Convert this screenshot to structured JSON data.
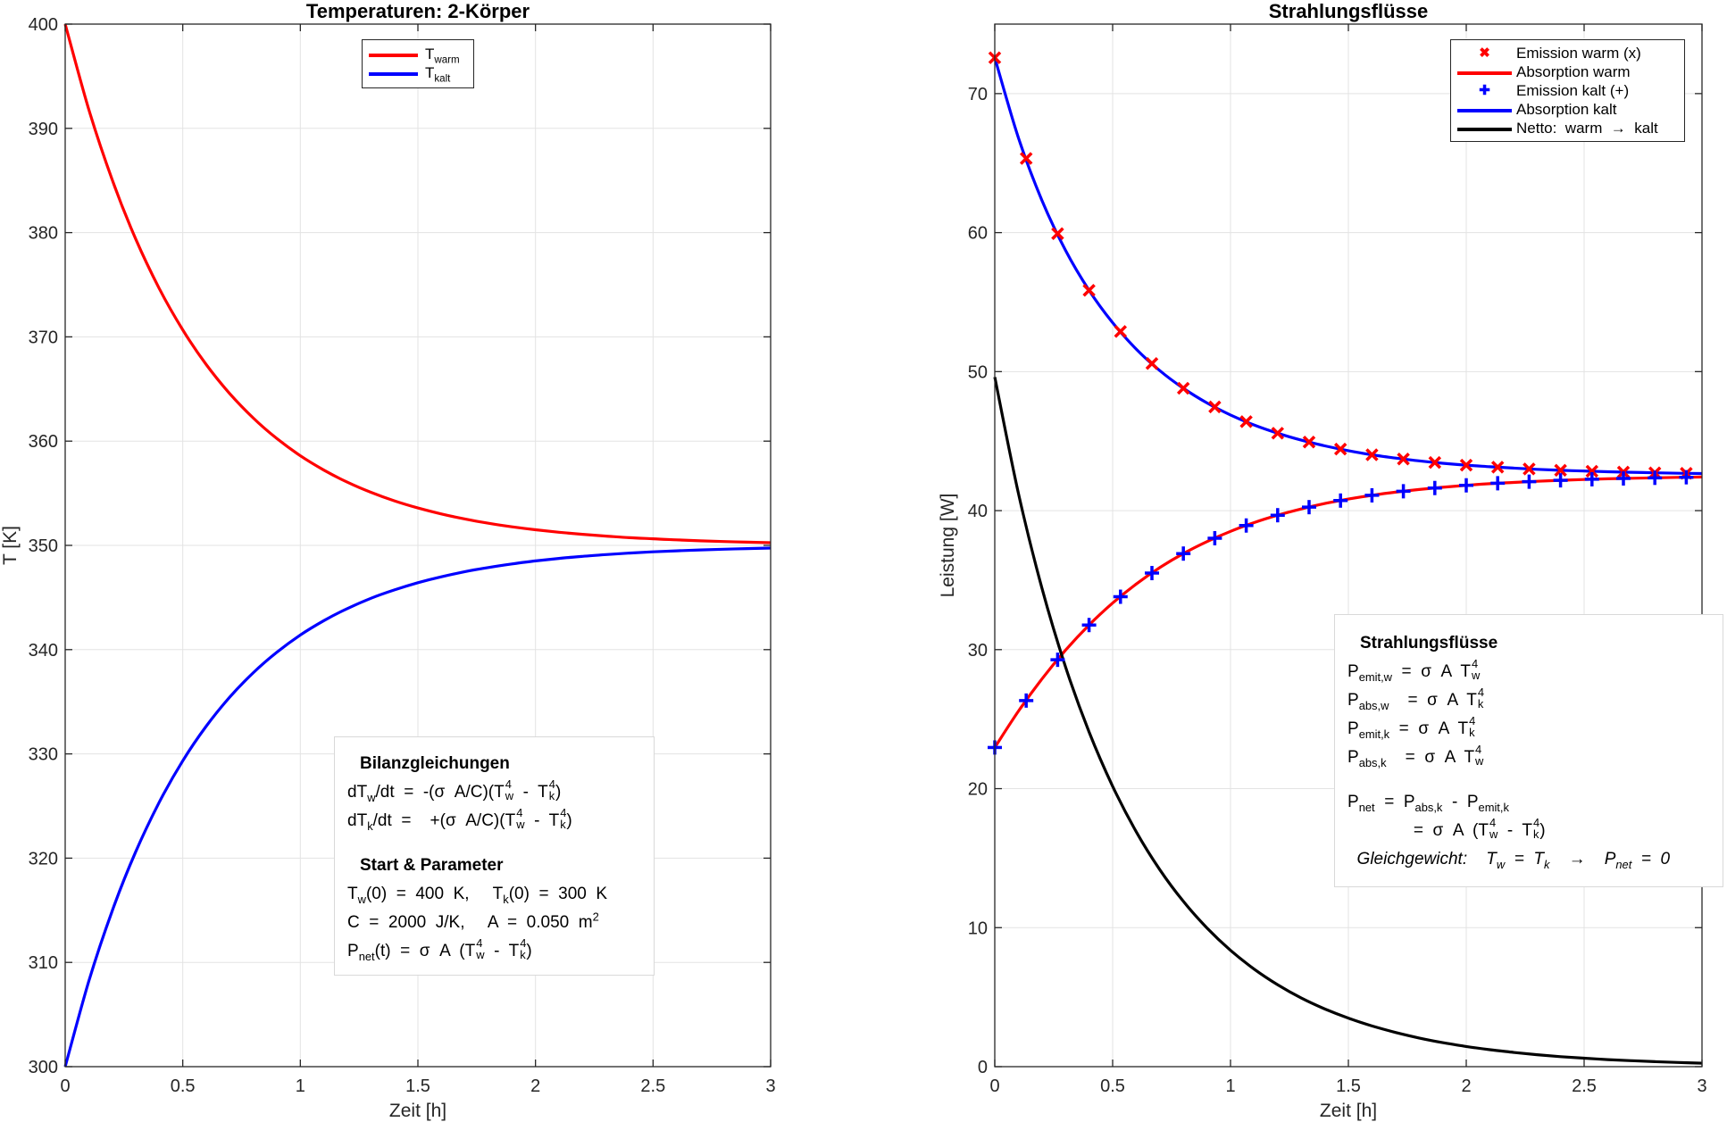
{
  "chart_data": [
    {
      "type": "line",
      "title": "Temperaturen: 2-Körper",
      "xlabel": "Zeit [h]",
      "ylabel": "T [K]",
      "xlim": [
        0,
        3
      ],
      "ylim": [
        300,
        400
      ],
      "xticks": [
        0,
        0.5,
        1,
        1.5,
        2,
        2.5,
        3
      ],
      "xtick_labels": [
        "0",
        "0.5",
        "1",
        "1.5",
        "2",
        "2.5",
        "3"
      ],
      "yticks": [
        300,
        310,
        320,
        330,
        340,
        350,
        360,
        370,
        380,
        390,
        400
      ],
      "ytick_labels": [
        "300",
        "310",
        "320",
        "330",
        "340",
        "350",
        "360",
        "370",
        "380",
        "390",
        "400"
      ],
      "grid": true,
      "legend_placement": "top-center",
      "x": [
        0,
        0.1,
        0.2,
        0.3,
        0.4,
        0.5,
        0.6,
        0.7,
        0.8,
        0.9,
        1.0,
        1.1,
        1.2,
        1.3,
        1.4,
        1.5,
        1.6,
        1.7,
        1.8,
        1.9,
        2.0,
        2.1,
        2.2,
        2.3,
        2.4,
        2.5,
        2.6,
        2.7,
        2.8,
        2.9,
        3.0
      ],
      "series": [
        {
          "name": "T warm",
          "legend": [
            {
              "t": "T"
            },
            {
              "sub": "warm"
            }
          ],
          "color": "#ff0000",
          "style": "line",
          "values": [
            400,
            391.85,
            385.06,
            379.38,
            374.64,
            370.67,
            367.34,
            364.55,
            362.21,
            360.25,
            358.6,
            357.22,
            356.06,
            355.09,
            354.27,
            353.59,
            353.01,
            352.53,
            352.12,
            351.78,
            351.5,
            351.26,
            351.06,
            350.89,
            350.74,
            350.63,
            350.53,
            350.44,
            350.37,
            350.31,
            350.26
          ]
        },
        {
          "name": "T kalt",
          "legend": [
            {
              "t": "T"
            },
            {
              "sub": "kalt"
            }
          ],
          "color": "#0000ff",
          "style": "line",
          "values": [
            300,
            308.16,
            314.95,
            320.62,
            325.36,
            329.34,
            332.66,
            335.45,
            337.79,
            339.75,
            341.4,
            342.78,
            343.94,
            344.92,
            345.73,
            346.42,
            346.99,
            347.48,
            347.88,
            348.22,
            348.51,
            348.75,
            348.95,
            349.12,
            349.26,
            349.38,
            349.48,
            349.56,
            349.63,
            349.69,
            349.74
          ]
        }
      ],
      "annotation": [
        {
          "head": "Bilanzgleichungen"
        },
        {
          "seg": [
            {
              "t": "dT"
            },
            {
              "sub": "w"
            },
            {
              "t": "/dt  =  -(σ  A/C)(T"
            },
            {
              "ss": [
                "4",
                "w"
              ]
            },
            {
              "t": "  -  T"
            },
            {
              "ss": [
                "4",
                "k"
              ]
            },
            {
              "t": ")"
            }
          ]
        },
        {
          "seg": [
            {
              "t": "dT"
            },
            {
              "sub": "k"
            },
            {
              "t": "/dt  =    +(σ  A/C)(T"
            },
            {
              "ss": [
                "4",
                "w"
              ]
            },
            {
              "t": "  -  T"
            },
            {
              "ss": [
                "4",
                "k"
              ]
            },
            {
              "t": ")"
            }
          ]
        },
        {
          "blank": true
        },
        {
          "head": "Start  &  Parameter"
        },
        {
          "seg": [
            {
              "t": "T"
            },
            {
              "sub": "w"
            },
            {
              "t": "(0)  =  400  K,     T"
            },
            {
              "sub": "k"
            },
            {
              "t": "(0)  =  300  K"
            }
          ]
        },
        {
          "seg": [
            {
              "t": "C  =  2000  J/K,     A  =  0.050  m"
            },
            {
              "sup": "2"
            }
          ]
        },
        {
          "seg": [
            {
              "t": "P"
            },
            {
              "sub": "net"
            },
            {
              "t": "(t)  =  σ  A  (T"
            },
            {
              "ss": [
                "4",
                "w"
              ]
            },
            {
              "t": "  -  T"
            },
            {
              "ss": [
                "4",
                "k"
              ]
            },
            {
              "t": ")"
            }
          ]
        }
      ]
    },
    {
      "type": "line",
      "title": "Strahlungsflüsse",
      "xlabel": "Zeit [h]",
      "ylabel": "Leistung [W]",
      "xlim": [
        0,
        3
      ],
      "ylim": [
        0,
        75
      ],
      "xticks": [
        0,
        0.5,
        1,
        1.5,
        2,
        2.5,
        3
      ],
      "xtick_labels": [
        "0",
        "0.5",
        "1",
        "1.5",
        "2",
        "2.5",
        "3"
      ],
      "yticks": [
        0,
        10,
        20,
        30,
        40,
        50,
        60,
        70
      ],
      "ytick_labels": [
        "0",
        "10",
        "20",
        "30",
        "40",
        "50",
        "60",
        "70"
      ],
      "grid": true,
      "legend_placement": "top-right",
      "x": [
        0,
        0.1,
        0.2,
        0.3,
        0.4,
        0.5,
        0.6,
        0.7,
        0.8,
        0.9,
        1.0,
        1.1,
        1.2,
        1.3,
        1.4,
        1.5,
        1.6,
        1.7,
        1.8,
        1.9,
        2.0,
        2.1,
        2.2,
        2.3,
        2.4,
        2.5,
        2.6,
        2.7,
        2.8,
        2.9,
        3.0
      ],
      "marker_t": [
        0,
        0.1333,
        0.2667,
        0.4,
        0.5333,
        0.6667,
        0.8,
        0.9333,
        1.0667,
        1.2,
        1.3333,
        1.4667,
        1.6,
        1.7333,
        1.8667,
        2.0,
        2.1333,
        2.2667,
        2.4,
        2.5333,
        2.6667,
        2.8,
        2.9333
      ],
      "series": [
        {
          "name": "Emission warm (x)",
          "color": "#ff0000",
          "style": "marker-x",
          "values": [
            72.58,
            66.84,
            62.32,
            58.73,
            55.85,
            53.52,
            51.62,
            50.07,
            48.8,
            47.75,
            46.88,
            46.16,
            45.57,
            45.07,
            44.66,
            44.31,
            44.02,
            43.78,
            43.58,
            43.41,
            43.27,
            43.16,
            43.06,
            42.97,
            42.9,
            42.85,
            42.8,
            42.76,
            42.72,
            42.69,
            42.67
          ]
        },
        {
          "name": "Absorption warm",
          "color": "#ff0000",
          "style": "line",
          "values": [
            22.96,
            25.56,
            27.89,
            29.96,
            31.77,
            33.35,
            34.72,
            35.9,
            36.91,
            37.77,
            38.51,
            39.14,
            39.67,
            40.12,
            40.51,
            40.83,
            41.1,
            41.33,
            41.52,
            41.68,
            41.82,
            41.94,
            42.03,
            42.11,
            42.18,
            42.24,
            42.29,
            42.33,
            42.36,
            42.39,
            42.42
          ]
        },
        {
          "name": "Emission kalt (+)",
          "color": "#0000ff",
          "style": "marker-plus",
          "values": [
            22.96,
            25.56,
            27.89,
            29.96,
            31.77,
            33.35,
            34.72,
            35.9,
            36.91,
            37.77,
            38.51,
            39.14,
            39.67,
            40.12,
            40.51,
            40.83,
            41.1,
            41.33,
            41.52,
            41.68,
            41.82,
            41.94,
            42.03,
            42.11,
            42.18,
            42.24,
            42.29,
            42.33,
            42.36,
            42.39,
            42.42
          ]
        },
        {
          "name": "Absorption kalt",
          "color": "#0000ff",
          "style": "line",
          "values": [
            72.58,
            66.84,
            62.32,
            58.73,
            55.85,
            53.52,
            51.62,
            50.07,
            48.8,
            47.75,
            46.88,
            46.16,
            45.57,
            45.07,
            44.66,
            44.31,
            44.02,
            43.78,
            43.58,
            43.41,
            43.27,
            43.16,
            43.06,
            42.97,
            42.9,
            42.85,
            42.8,
            42.76,
            42.72,
            42.69,
            42.67
          ]
        },
        {
          "name": "Netto:  warm  →  kalt",
          "color": "#000000",
          "style": "line",
          "values": [
            49.61,
            41.27,
            34.43,
            28.77,
            24.08,
            20.17,
            16.9,
            14.17,
            11.89,
            9.98,
            8.37,
            7.02,
            5.89,
            4.94,
            4.15,
            3.49,
            2.93,
            2.46,
            2.06,
            1.73,
            1.45,
            1.22,
            1.03,
            0.86,
            0.72,
            0.61,
            0.51,
            0.43,
            0.36,
            0.3,
            0.25
          ]
        }
      ],
      "annotation": [
        {
          "head": "Strahlungsflüsse"
        },
        {
          "seg": [
            {
              "t": "P"
            },
            {
              "sub": "emit,w"
            },
            {
              "t": "  =  σ  A  T"
            },
            {
              "ss": [
                "4",
                "w"
              ]
            }
          ]
        },
        {
          "seg": [
            {
              "t": "P"
            },
            {
              "sub": "abs,w"
            },
            {
              "t": "    =  σ  A  T"
            },
            {
              "ss": [
                "4",
                "k"
              ]
            }
          ]
        },
        {
          "seg": [
            {
              "t": "P"
            },
            {
              "sub": "emit,k"
            },
            {
              "t": "  =  σ  A  T"
            },
            {
              "ss": [
                "4",
                "k"
              ]
            }
          ]
        },
        {
          "seg": [
            {
              "t": "P"
            },
            {
              "sub": "abs,k"
            },
            {
              "t": "    =  σ  A  T"
            },
            {
              "ss": [
                "4",
                "w"
              ]
            }
          ]
        },
        {
          "blank": true
        },
        {
          "seg": [
            {
              "t": "P"
            },
            {
              "sub": "net"
            },
            {
              "t": "  =  P"
            },
            {
              "sub": "abs,k"
            },
            {
              "t": "  -  P"
            },
            {
              "sub": "emit,k"
            }
          ]
        },
        {
          "seg": [
            {
              "t": "              =  σ  A  (T"
            },
            {
              "ss": [
                "4",
                "w"
              ]
            },
            {
              "t": "  -  T"
            },
            {
              "ss": [
                "4",
                "k"
              ]
            },
            {
              "t": ")"
            }
          ]
        },
        {
          "seg": [
            {
              "i": "  Gleichgewicht:    T"
            },
            {
              "isub": "w"
            },
            {
              "i": "  =  T"
            },
            {
              "isub": "k"
            },
            {
              "t": "    →    "
            },
            {
              "i": "P"
            },
            {
              "isub": "net"
            },
            {
              "i": "  =  0"
            }
          ]
        }
      ]
    }
  ]
}
